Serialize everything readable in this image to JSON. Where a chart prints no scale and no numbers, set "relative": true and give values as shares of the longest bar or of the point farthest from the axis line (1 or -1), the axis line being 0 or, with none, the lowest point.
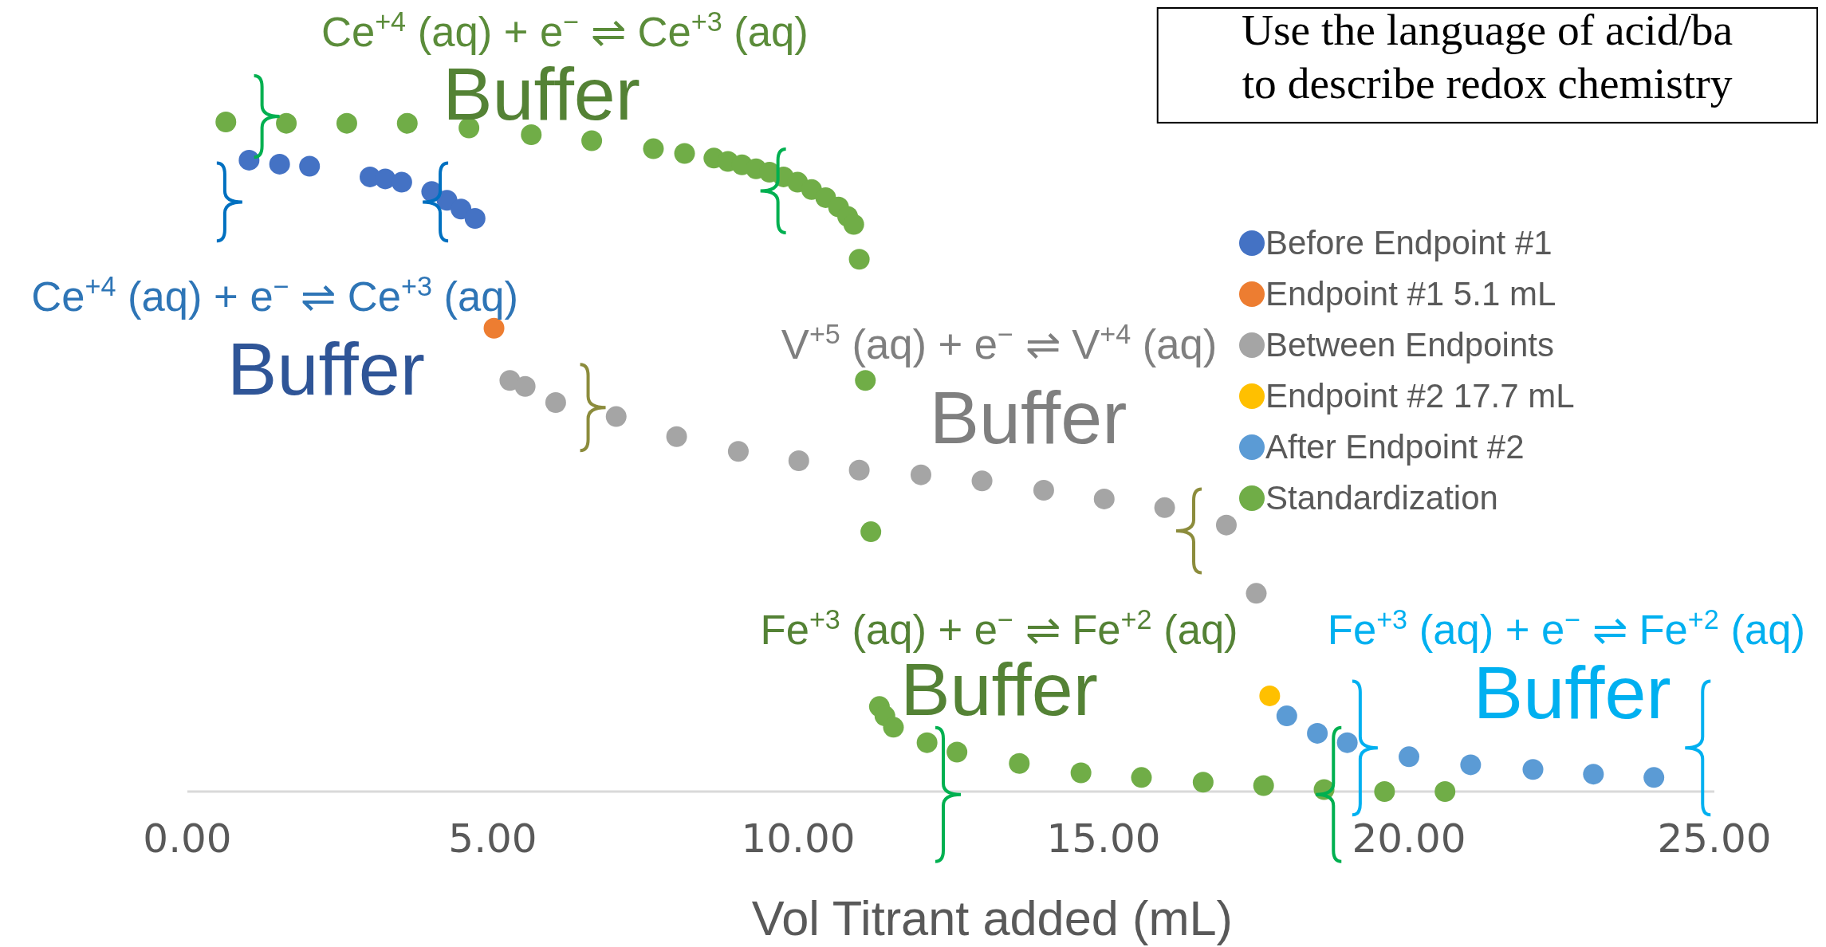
{
  "chart_data": {
    "type": "scatter",
    "relative": true,
    "xlabel": "Vol Titrant added (mL)",
    "xlim": [
      0,
      25
    ],
    "xticks": [
      {
        "value": 0,
        "label": "0.00"
      },
      {
        "value": 5,
        "label": "5.00"
      },
      {
        "value": 10,
        "label": "10.00"
      },
      {
        "value": 15,
        "label": "15.00"
      },
      {
        "value": 20,
        "label": "20.00"
      },
      {
        "value": 25,
        "label": "25.00"
      }
    ],
    "tick_labels": "x",
    "marker": "circle",
    "legend": "right",
    "grid": false,
    "series": [
      {
        "name": "Before Endpoint #1",
        "color": "#4472c4",
        "x": [
          1.01,
          1.51,
          2.0,
          2.99,
          3.24,
          3.51,
          4.0,
          4.25,
          4.48,
          4.71
        ],
        "values": [
          0.943,
          0.937,
          0.934,
          0.918,
          0.915,
          0.91,
          0.896,
          0.883,
          0.87,
          0.856
        ]
      },
      {
        "name": "Endpoint #1 5.1 mL",
        "color": "#ed7d31",
        "x": [
          5.02
        ],
        "values": [
          0.692
        ]
      },
      {
        "name": "Between Endpoints",
        "color": "#a5a5a5",
        "x": [
          5.28,
          5.53,
          6.03,
          7.02,
          8.01,
          9.02,
          10.01,
          11.0,
          12.01,
          13.01,
          14.02,
          15.01,
          16.0,
          17.01,
          17.5
        ],
        "values": [
          0.614,
          0.605,
          0.581,
          0.56,
          0.53,
          0.508,
          0.494,
          0.48,
          0.473,
          0.464,
          0.45,
          0.437,
          0.424,
          0.398,
          0.296
        ]
      },
      {
        "name": "Endpoint #2 17.7 mL",
        "color": "#ffc000",
        "x": [
          17.72
        ],
        "values": [
          0.143
        ]
      },
      {
        "name": "After Endpoint #2",
        "color": "#5b9bd5",
        "x": [
          18.0,
          18.5,
          18.99,
          20.0,
          21.01,
          22.03,
          23.02,
          24.01
        ],
        "values": [
          0.113,
          0.087,
          0.073,
          0.052,
          0.04,
          0.033,
          0.026,
          0.021
        ]
      },
      {
        "name": "Standardization",
        "color": "#70ad47",
        "x": [
          0.63,
          1.62,
          2.61,
          3.6,
          4.61,
          5.63,
          6.62,
          7.63,
          8.14,
          8.62,
          8.85,
          9.08,
          9.31,
          9.53,
          9.76,
          9.99,
          10.22,
          10.45,
          10.66,
          10.81,
          10.91,
          11.0,
          11.1,
          11.19,
          11.33,
          11.42,
          11.56,
          12.11,
          12.6,
          13.62,
          14.63,
          15.62,
          16.63,
          17.62,
          18.61,
          19.6,
          20.59
        ],
        "values": [
          1.0,
          0.998,
          0.998,
          0.998,
          0.991,
          0.981,
          0.972,
          0.96,
          0.953,
          0.946,
          0.941,
          0.936,
          0.93,
          0.925,
          0.918,
          0.91,
          0.899,
          0.887,
          0.873,
          0.859,
          0.847,
          0.795,
          0.614,
          0.388,
          0.127,
          0.113,
          0.096,
          0.073,
          0.059,
          0.042,
          0.028,
          0.021,
          0.014,
          0.009,
          0.003,
          0.0,
          0.0
        ]
      }
    ],
    "annotations": [
      "Ce$^{+4}$ (aq) + e$^{−}$ ⇌ Ce$^{+3}$ (aq)",
      "Buffer",
      "Ce$^{+4}$ (aq) + e$^{−}$ ⇌ Ce$^{+3}$ (aq)",
      "Buffer",
      "V$^{+5}$ (aq) + e$^{−}$ ⇌ V$^{+4}$ (aq)",
      "Buffer",
      "Fe$^{+3}$ (aq) + e$^{−}$ ⇌ Fe$^{+2}$ (aq)",
      "Buffer",
      "Fe$^{+3}$ (aq) + e$^{−}$ ⇌ Fe$^{+2}$ (aq)",
      "Buffer",
      "Use the language of acid/ba",
      "to describe redox chemistry"
    ]
  }
}
